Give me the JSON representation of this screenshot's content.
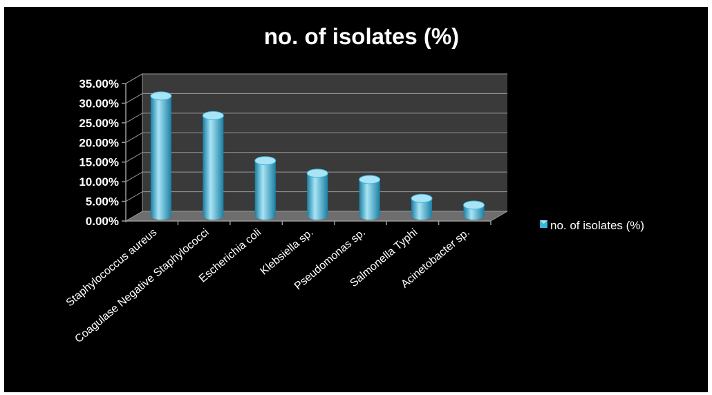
{
  "chart_data": {
    "type": "bar",
    "title": "no. of isolates (%)",
    "xlabel": "",
    "ylabel": "",
    "categories": [
      "Staphylococcus aureus",
      "Coagulase Negative Staphylococci",
      "Escherichia coli",
      "Klebsiella sp.",
      "Pseudomonas sp.",
      "Salmonella Typhi",
      "Acinetobacter sp."
    ],
    "series": [
      {
        "name": "no. of isolates (%)",
        "values": [
          0.305,
          0.255,
          0.14,
          0.108,
          0.092,
          0.044,
          0.027
        ]
      }
    ],
    "ylim": [
      0,
      0.35
    ],
    "yticks": [
      "0.00%",
      "5.00%",
      "10.00%",
      "15.00%",
      "20.00%",
      "25.00%",
      "30.00%",
      "35.00%"
    ],
    "grid": true,
    "legend": "right",
    "colors": {
      "background": "#000000",
      "wall": "#3a3a3a",
      "floor": "#6e6e6e",
      "gridline": "#9a9a9a",
      "bar": "#3bb6dd",
      "bar_dark": "#1b7fa3",
      "bar_light": "#a8e4f5",
      "text": "#ffffff"
    },
    "legend_icon": "cylinder-swatch-icon"
  }
}
